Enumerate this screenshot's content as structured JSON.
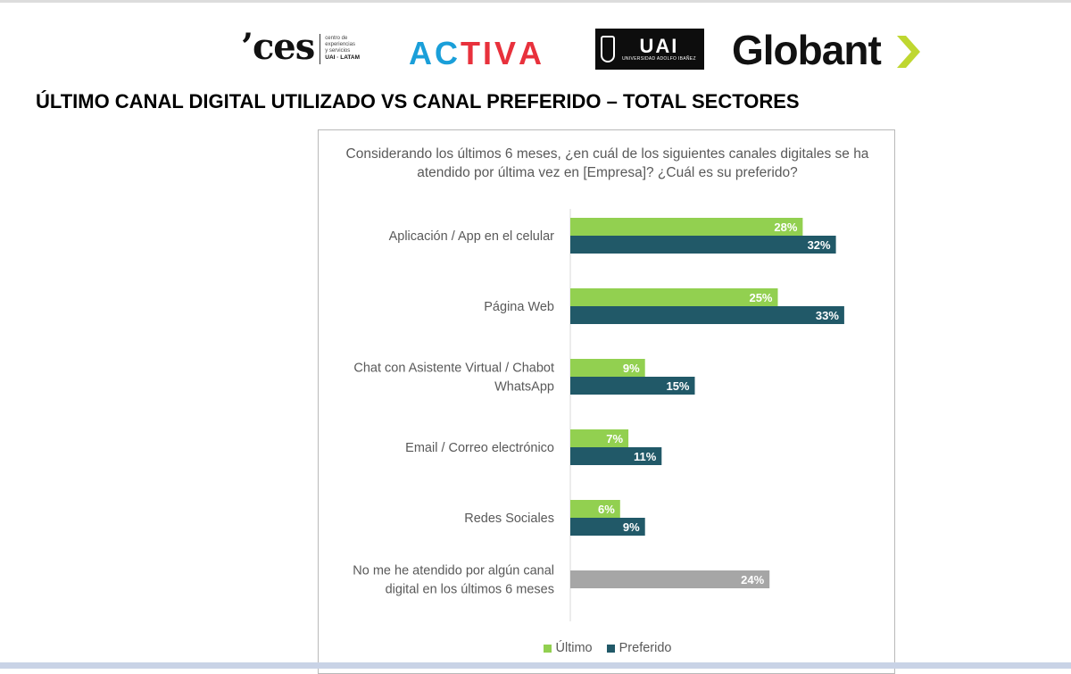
{
  "header": {
    "logo_ces": {
      "mark": "ces",
      "sub_lines": [
        "centro de",
        "experiencias",
        "y servicios"
      ],
      "sub_bold": "UAI · LATAM"
    },
    "logo_activa": "ACTIVA",
    "logo_uai": {
      "big": "UAI",
      "small": "UNIVERSIDAD ADOLFO IBAÑEZ"
    },
    "logo_globant": "Globant",
    "colors": {
      "activa_blue": "#1a9fd9",
      "activa_red": "#e8313c",
      "globant_green": "#bfd730"
    }
  },
  "page_title": "ÚLTIMO CANAL DIGITAL UTILIZADO VS CANAL PREFERIDO – TOTAL SECTORES",
  "chart_data": {
    "type": "bar",
    "orientation": "horizontal",
    "question": "Considerando los últimos 6 meses, ¿en cuál de los siguientes canales digitales se ha atendido por última vez en [Empresa]? ¿Cuál es su preferido?",
    "categories": [
      [
        "Aplicación / App en el celular"
      ],
      [
        "Página Web"
      ],
      [
        "Chat con Asistente Virtual / Chabot",
        "WhatsApp"
      ],
      [
        "Email / Correo electrónico"
      ],
      [
        "Redes Sociales"
      ],
      [
        "No me he atendido por algún canal",
        "digital en los últimos 6 meses"
      ]
    ],
    "series": [
      {
        "name": "Último",
        "color": "#92d050",
        "values": [
          28,
          25,
          9,
          7,
          6,
          null
        ]
      },
      {
        "name": "Preferido",
        "color": "#215968",
        "values": [
          32,
          33,
          15,
          11,
          9,
          null
        ]
      }
    ],
    "single_values": [
      null,
      null,
      null,
      null,
      null,
      24
    ],
    "single_color": "#a6a6a6",
    "value_suffix": "%",
    "xlim": [
      0,
      40
    ],
    "grid": false,
    "legend_position": "bottom"
  }
}
